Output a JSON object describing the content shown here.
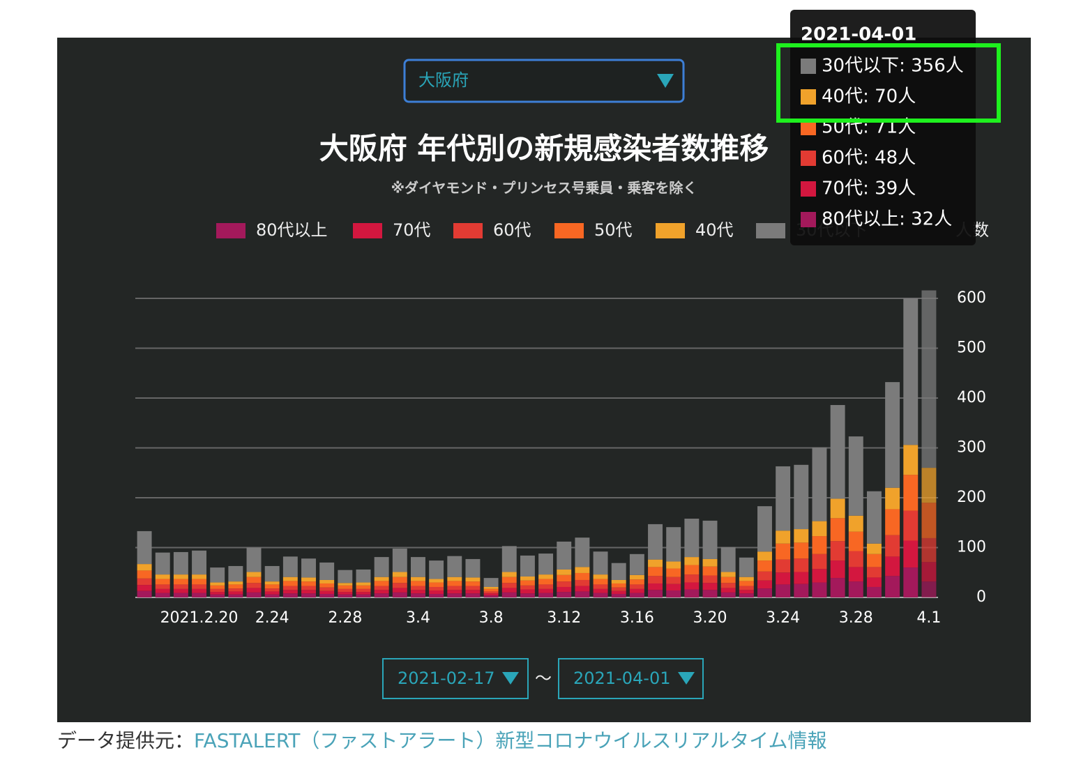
{
  "chart_data": {
    "type": "stacked_bar",
    "title": "大阪府 年代別の新規感染者数推移",
    "subtitle": "※ダイヤモンド・プリンセス号乗員・乗客を除く",
    "y_label": "人数",
    "categories": [
      null,
      null,
      null,
      "2021.2.20",
      null,
      null,
      null,
      "2.24",
      null,
      null,
      null,
      "2.28",
      null,
      null,
      null,
      "3.4",
      null,
      null,
      null,
      "3.8",
      null,
      null,
      null,
      "3.12",
      null,
      null,
      null,
      "3.16",
      null,
      null,
      null,
      "3.20",
      null,
      null,
      null,
      "3.24",
      null,
      null,
      null,
      "3.28",
      null,
      null,
      null,
      "4.1"
    ],
    "series": [
      {
        "name": "80代以上",
        "color": "#a3195b",
        "values": [
          13,
          9,
          9,
          9,
          6,
          6,
          10,
          6,
          8,
          8,
          7,
          6,
          6,
          8,
          10,
          8,
          7,
          8,
          8,
          4,
          10,
          8,
          9,
          11,
          12,
          9,
          7,
          9,
          15,
          14,
          16,
          15,
          10,
          8,
          18,
          26,
          27,
          30,
          39,
          32,
          21,
          43,
          60,
          32
        ]
      },
      {
        "name": "70代",
        "color": "#d3173f",
        "values": [
          12,
          8,
          8,
          8,
          5,
          6,
          9,
          6,
          7,
          7,
          6,
          5,
          5,
          7,
          9,
          7,
          7,
          7,
          7,
          4,
          9,
          8,
          8,
          10,
          11,
          8,
          6,
          8,
          13,
          13,
          14,
          14,
          9,
          7,
          16,
          24,
          24,
          27,
          35,
          29,
          19,
          39,
          54,
          39
        ]
      },
      {
        "name": "60代",
        "color": "#e23b33",
        "values": [
          13,
          9,
          9,
          9,
          6,
          6,
          10,
          6,
          8,
          8,
          7,
          6,
          6,
          8,
          10,
          8,
          7,
          8,
          8,
          4,
          10,
          8,
          9,
          11,
          12,
          9,
          7,
          9,
          15,
          14,
          16,
          15,
          10,
          8,
          18,
          26,
          27,
          30,
          39,
          32,
          21,
          43,
          60,
          48
        ]
      },
      {
        "name": "50代",
        "color": "#f86723",
        "values": [
          16,
          11,
          11,
          11,
          7,
          8,
          12,
          8,
          10,
          9,
          8,
          7,
          7,
          10,
          12,
          10,
          9,
          10,
          9,
          5,
          12,
          10,
          11,
          13,
          14,
          11,
          8,
          10,
          18,
          17,
          19,
          18,
          12,
          10,
          22,
          32,
          32,
          36,
          46,
          39,
          26,
          52,
          72,
          71
        ]
      },
      {
        "name": "40代",
        "color": "#f0a22b",
        "values": [
          13,
          9,
          9,
          9,
          6,
          6,
          10,
          6,
          8,
          8,
          7,
          5,
          6,
          8,
          10,
          8,
          7,
          8,
          8,
          4,
          10,
          8,
          9,
          11,
          12,
          9,
          7,
          9,
          15,
          14,
          16,
          15,
          10,
          8,
          18,
          26,
          27,
          30,
          39,
          32,
          21,
          43,
          60,
          70
        ]
      },
      {
        "name": "30代以下",
        "color": "#7b7b7b",
        "values": [
          66,
          44,
          45,
          48,
          30,
          31,
          49,
          31,
          41,
          38,
          35,
          26,
          26,
          40,
          47,
          40,
          37,
          42,
          37,
          18,
          52,
          42,
          42,
          56,
          59,
          46,
          34,
          42,
          71,
          69,
          77,
          77,
          50,
          39,
          91,
          129,
          129,
          148,
          188,
          159,
          105,
          212,
          294,
          356
        ]
      }
    ],
    "ylim": [
      0,
      600
    ],
    "yticks": [
      0,
      100,
      200,
      300,
      400,
      500,
      600
    ],
    "grid": true
  },
  "ui": {
    "prefecture": "大阪府",
    "date_from": "2021-02-17",
    "range_sep": "〜",
    "date_to": "2021-04-01",
    "source_label": "データ提供元：",
    "source_link": "FASTALERT（ファストアラート）新型コロナウイルスリアルタイム情報",
    "tooltip": {
      "title": "2021-04-01",
      "items": [
        "30代以下: 356人",
        "40代: 70人",
        "50代: 71人",
        "60代: 48人",
        "70代: 39人",
        "80代以上: 32人"
      ]
    }
  }
}
